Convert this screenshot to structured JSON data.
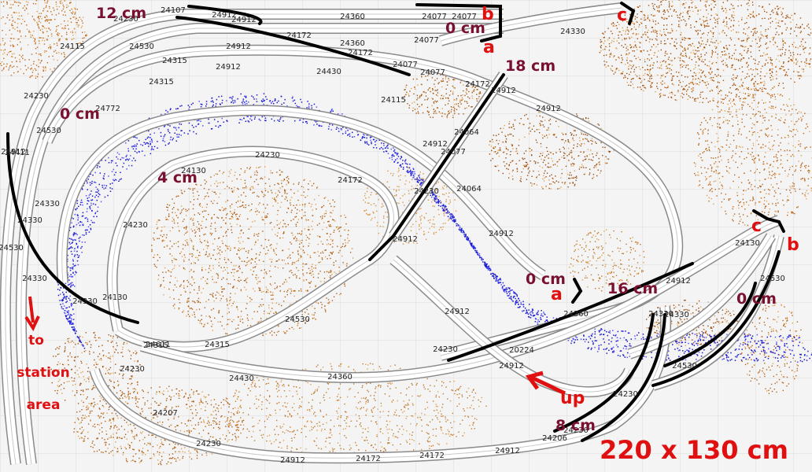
{
  "plan": {
    "dimensions": "220 x 130 cm",
    "note_lines": [
      "to",
      "station",
      "area"
    ],
    "up_label": "up"
  },
  "heights": [
    "12 cm",
    "0 cm",
    "18 cm",
    "0 cm",
    "4 cm",
    "0 cm",
    "16 cm",
    "0 cm",
    "8 cm"
  ],
  "markers": [
    "b",
    "a",
    "c",
    "c",
    "b",
    "a"
  ],
  "track_labels": [
    "24107",
    "24912",
    "24912",
    "24360",
    "24077",
    "24077",
    "24230",
    "24530",
    "24172",
    "24360",
    "24077",
    "24077",
    "24115",
    "24330",
    "24912",
    "24172",
    "24077",
    "24315",
    "24912",
    "24430",
    "24315",
    "24912",
    "24172",
    "24912",
    "24230",
    "24772",
    "24115",
    "24912",
    "24064",
    "24530",
    "24912",
    "24077",
    "24330",
    "24230",
    "24411",
    "24330",
    "24130",
    "24230",
    "24172",
    "24064",
    "24230",
    "24530",
    "24330",
    "24912",
    "24912",
    "24130",
    "24315",
    "24330",
    "24130",
    "24912",
    "24530",
    "24330",
    "24611",
    "24315",
    "24530",
    "24912",
    "24360",
    "24230",
    "24430",
    "24360",
    "24912",
    "20224",
    "24330",
    "24530",
    "24230",
    "24207",
    "24230",
    "24912",
    "24172",
    "24172",
    "24912",
    "24206",
    "24230",
    "24230"
  ],
  "colors": {
    "annotation_red": "#e01010",
    "height_label": "#7a1030",
    "water": "#1a1ad0",
    "terrain": "#b8651a"
  }
}
